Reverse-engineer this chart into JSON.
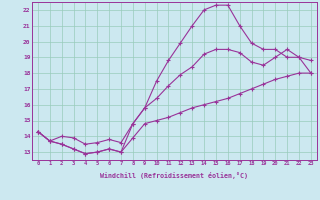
{
  "xlabel": "Windchill (Refroidissement éolien,°C)",
  "background_color": "#cce8f0",
  "line_color": "#993399",
  "grid_color": "#99ccbb",
  "xlim": [
    -0.5,
    23.5
  ],
  "ylim": [
    12.5,
    22.5
  ],
  "xticks": [
    0,
    1,
    2,
    3,
    4,
    5,
    6,
    7,
    8,
    9,
    10,
    11,
    12,
    13,
    14,
    15,
    16,
    17,
    18,
    19,
    20,
    21,
    22,
    23
  ],
  "yticks": [
    13,
    14,
    15,
    16,
    17,
    18,
    19,
    20,
    21,
    22
  ],
  "line1_x": [
    0,
    1,
    2,
    3,
    4,
    5,
    6,
    7,
    8,
    9,
    10,
    11,
    12,
    13,
    14,
    15,
    16,
    17,
    18,
    19,
    20,
    21,
    22,
    23
  ],
  "line1_y": [
    14.3,
    13.7,
    13.5,
    13.2,
    12.9,
    13.0,
    13.2,
    13.0,
    13.9,
    14.8,
    15.0,
    15.2,
    15.5,
    15.8,
    16.0,
    16.2,
    16.4,
    16.7,
    17.0,
    17.3,
    17.6,
    17.8,
    18.0,
    18.0
  ],
  "line2_x": [
    0,
    1,
    2,
    3,
    4,
    5,
    6,
    7,
    8,
    9,
    10,
    11,
    12,
    13,
    14,
    15,
    16,
    17,
    18,
    19,
    20,
    21,
    22,
    23
  ],
  "line2_y": [
    14.3,
    13.7,
    13.5,
    13.2,
    12.9,
    13.0,
    13.2,
    13.0,
    14.8,
    15.8,
    17.5,
    18.8,
    19.9,
    21.0,
    22.0,
    22.3,
    22.3,
    21.0,
    19.9,
    19.5,
    19.5,
    19.0,
    19.0,
    18.8
  ],
  "line3_x": [
    0,
    1,
    2,
    3,
    4,
    5,
    6,
    7,
    8,
    9,
    10,
    11,
    12,
    13,
    14,
    15,
    16,
    17,
    18,
    19,
    20,
    21,
    22,
    23
  ],
  "line3_y": [
    14.3,
    13.7,
    14.0,
    13.9,
    13.5,
    13.6,
    13.8,
    13.6,
    14.8,
    15.8,
    16.4,
    17.2,
    17.9,
    18.4,
    19.2,
    19.5,
    19.5,
    19.3,
    18.7,
    18.5,
    19.0,
    19.5,
    19.0,
    18.0
  ]
}
